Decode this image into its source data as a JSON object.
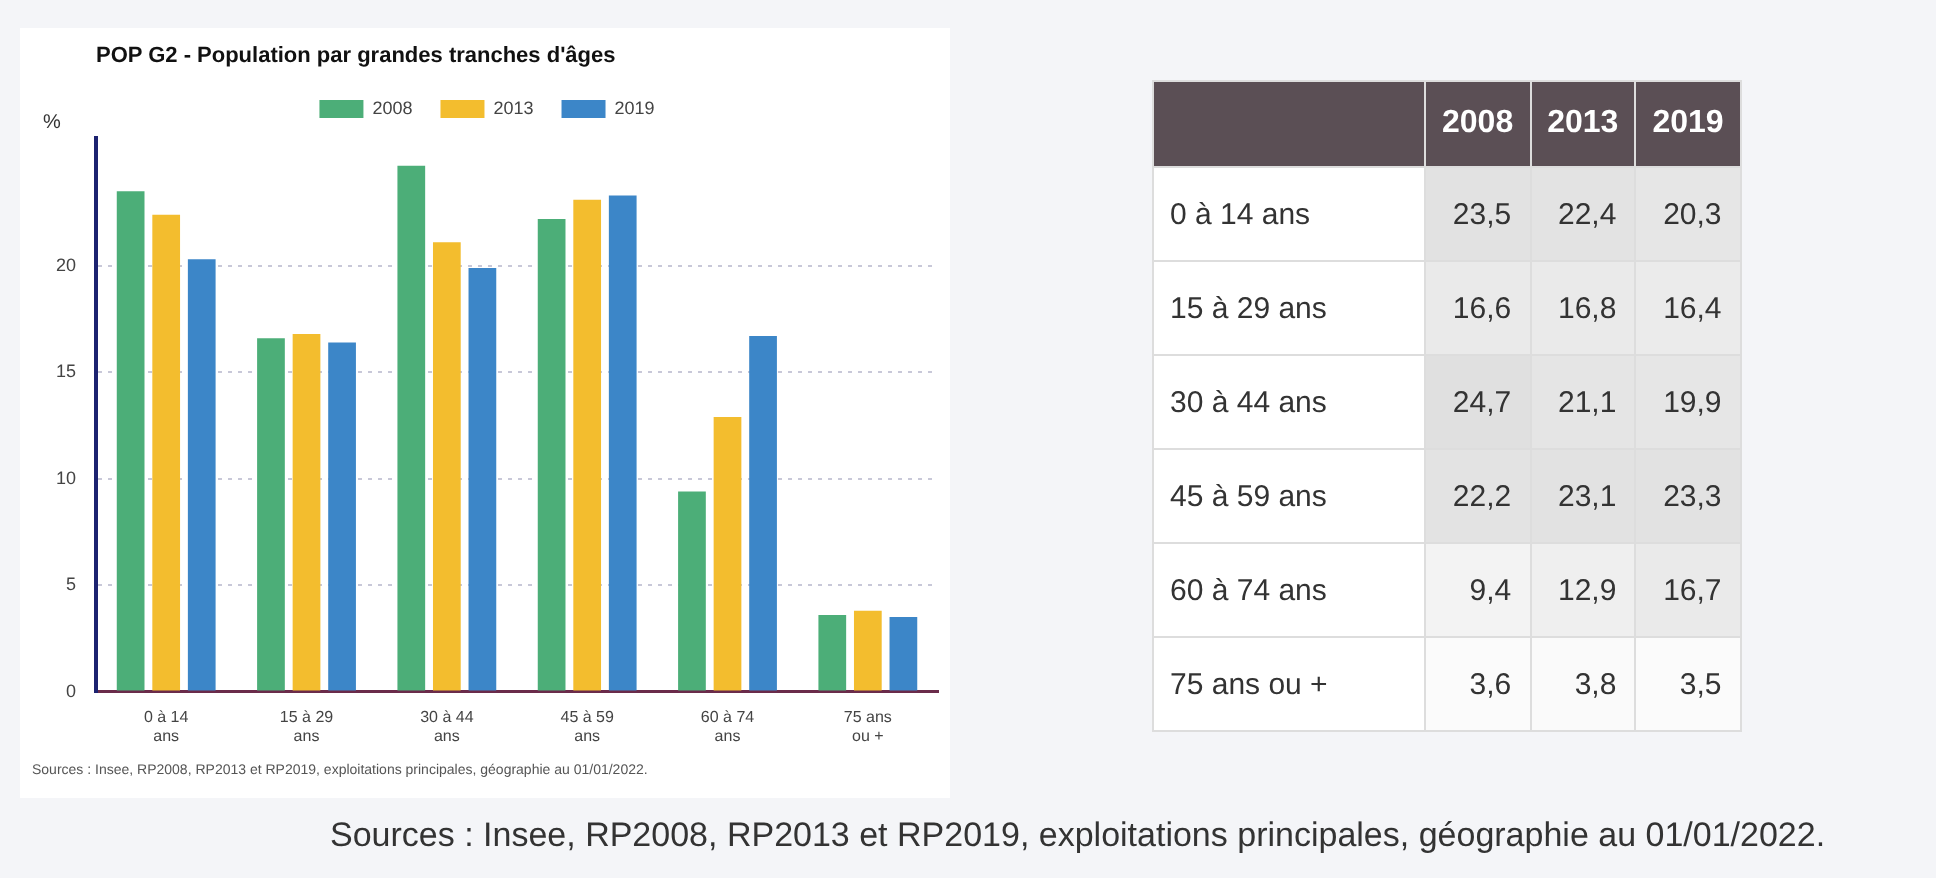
{
  "chart_data": [
    {
      "type": "bar",
      "title": "POP G2 - Population par grandes tranches d'âges",
      "ylabel": "%",
      "categories": [
        "0 à 14 ans",
        "15 à 29 ans",
        "30 à 44 ans",
        "45 à 59 ans",
        "60 à 74 ans",
        "75 ans ou +"
      ],
      "series": [
        {
          "name": "2008",
          "color": "#4cae78",
          "values": [
            23.5,
            16.6,
            24.7,
            22.2,
            9.4,
            3.6
          ]
        },
        {
          "name": "2013",
          "color": "#f3bd2e",
          "values": [
            22.4,
            16.8,
            21.1,
            23.1,
            12.9,
            3.8
          ]
        },
        {
          "name": "2019",
          "color": "#3c86c8",
          "values": [
            20.3,
            16.4,
            19.9,
            23.3,
            16.7,
            3.5
          ]
        }
      ],
      "ylim": [
        0,
        26
      ],
      "yticks": [
        0,
        5,
        10,
        15,
        20
      ],
      "grid": "y",
      "legend": "top",
      "annotations": [
        "Sources : Insee, RP2008, RP2013 et RP2019, exploitations principales, géographie au 01/01/2022."
      ]
    },
    {
      "type": "heatmap",
      "categories": [
        "2008",
        "2013",
        "2019"
      ],
      "y_categories": [
        "0 à 14 ans",
        "15 à 29 ans",
        "30 à 44 ans",
        "45 à 59 ans",
        "60 à 74 ans",
        "75 ans ou +"
      ],
      "cells": [
        [
          23.5,
          22.4,
          20.3
        ],
        [
          16.6,
          16.8,
          16.4
        ],
        [
          24.7,
          21.1,
          19.9
        ],
        [
          22.2,
          23.1,
          23.3
        ],
        [
          9.4,
          12.9,
          16.7
        ],
        [
          3.6,
          3.8,
          3.5
        ]
      ],
      "cell_labels": [
        [
          "23,5",
          "22,4",
          "20,3"
        ],
        [
          "16,6",
          "16,8",
          "16,4"
        ],
        [
          "24,7",
          "21,1",
          "19,9"
        ],
        [
          "22,2",
          "23,1",
          "23,3"
        ],
        [
          "9,4",
          "12,9",
          "16,7"
        ],
        [
          "3,6",
          "3,8",
          "3,5"
        ]
      ],
      "annotations": [
        "Sources : Insee, RP2008, RP2013 et RP2019, exploitations principales, géographie au 01/01/2022."
      ]
    }
  ]
}
